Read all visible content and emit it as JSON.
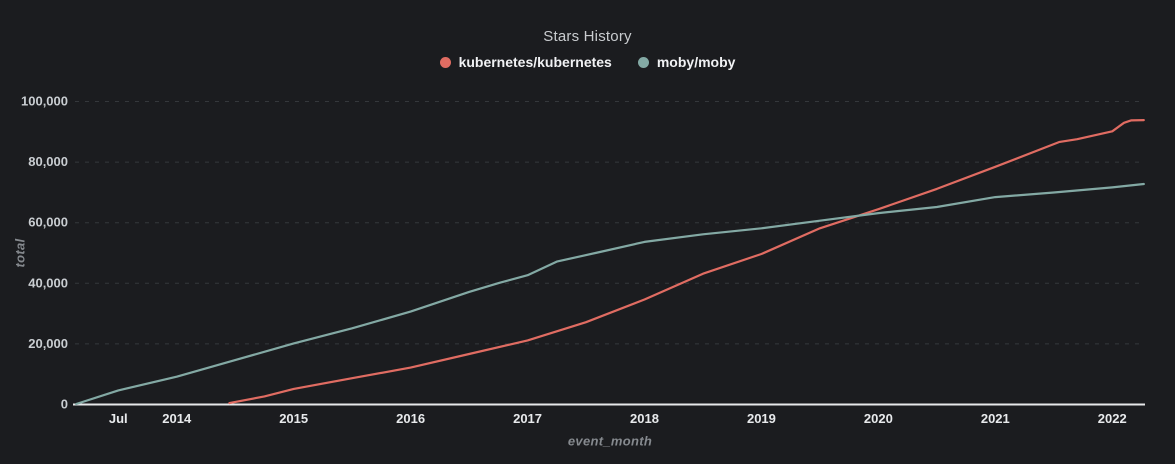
{
  "chart_data": {
    "type": "line",
    "title": "Stars History",
    "xlabel": "event_month",
    "ylabel": "total",
    "legend_position": "top-center",
    "grid": "horizontal-dashed",
    "x_domain": [
      2013.13,
      2022.28
    ],
    "y_domain": [
      0,
      100000
    ],
    "x_ticks": [
      {
        "t": 2013.5,
        "label": "Jul"
      },
      {
        "t": 2014,
        "label": "2014"
      },
      {
        "t": 2015,
        "label": "2015"
      },
      {
        "t": 2016,
        "label": "2016"
      },
      {
        "t": 2017,
        "label": "2017"
      },
      {
        "t": 2018,
        "label": "2018"
      },
      {
        "t": 2019,
        "label": "2019"
      },
      {
        "t": 2020,
        "label": "2020"
      },
      {
        "t": 2021,
        "label": "2021"
      },
      {
        "t": 2022,
        "label": "2022"
      }
    ],
    "y_ticks": [
      {
        "v": 0,
        "label": "0"
      },
      {
        "v": 20000,
        "label": "20,000"
      },
      {
        "v": 40000,
        "label": "40,000"
      },
      {
        "v": 60000,
        "label": "60,000"
      },
      {
        "v": 80000,
        "label": "80,000"
      },
      {
        "v": 100000,
        "label": "100,000"
      }
    ],
    "series": [
      {
        "name": "kubernetes/kubernetes",
        "color": "#e06c62",
        "points": [
          [
            2014.45,
            300
          ],
          [
            2014.75,
            2500
          ],
          [
            2015.0,
            5000
          ],
          [
            2015.5,
            8500
          ],
          [
            2016.0,
            12000
          ],
          [
            2016.5,
            16500
          ],
          [
            2017.0,
            21000
          ],
          [
            2017.5,
            27000
          ],
          [
            2018.0,
            34500
          ],
          [
            2018.5,
            43000
          ],
          [
            2019.0,
            49500
          ],
          [
            2019.5,
            58000
          ],
          [
            2020.0,
            64300
          ],
          [
            2020.5,
            71000
          ],
          [
            2021.0,
            78300
          ],
          [
            2021.55,
            86500
          ],
          [
            2021.7,
            87400
          ],
          [
            2022.0,
            90000
          ],
          [
            2022.1,
            92800
          ],
          [
            2022.16,
            93600
          ],
          [
            2022.27,
            93700
          ]
        ]
      },
      {
        "name": "moby/moby",
        "color": "#83a9a4",
        "points": [
          [
            2013.14,
            0
          ],
          [
            2013.5,
            4500
          ],
          [
            2014.0,
            9000
          ],
          [
            2014.5,
            14500
          ],
          [
            2015.0,
            20000
          ],
          [
            2015.5,
            25000
          ],
          [
            2016.0,
            30500
          ],
          [
            2016.5,
            37000
          ],
          [
            2016.76,
            40000
          ],
          [
            2017.0,
            42500
          ],
          [
            2017.25,
            47000
          ],
          [
            2017.6,
            50000
          ],
          [
            2018.0,
            53500
          ],
          [
            2018.5,
            56000
          ],
          [
            2019.0,
            58000
          ],
          [
            2019.5,
            60500
          ],
          [
            2020.0,
            63000
          ],
          [
            2020.5,
            65000
          ],
          [
            2021.0,
            68300
          ],
          [
            2021.5,
            69800
          ],
          [
            2022.0,
            71500
          ],
          [
            2022.27,
            72600
          ]
        ]
      }
    ]
  }
}
